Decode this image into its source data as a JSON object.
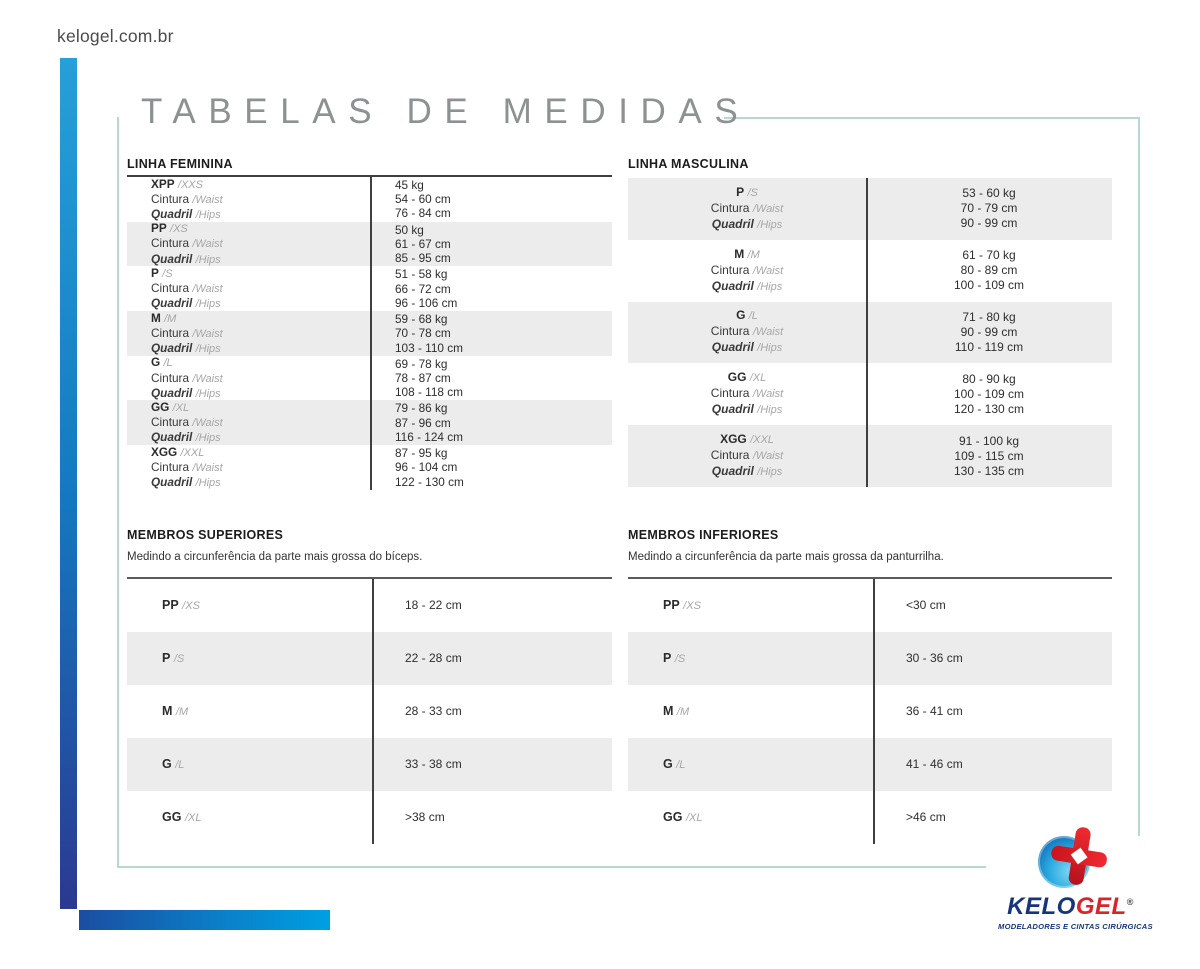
{
  "header": {
    "site": "kelogel.com.br",
    "title": "TABELAS DE MEDIDAS"
  },
  "shared_labels": {
    "cintura": "Cintura",
    "waist": "/Waist",
    "quadril": "Quadril",
    "hips": "/Hips"
  },
  "feminina": {
    "heading": "LINHA FEMININA",
    "rows": [
      {
        "size": "XPP",
        "intl": "/XXS",
        "weight": "45 kg",
        "waist": "54 - 60 cm",
        "hips": "76 - 84 cm"
      },
      {
        "size": "PP",
        "intl": "/XS",
        "weight": "50 kg",
        "waist": "61 - 67 cm",
        "hips": "85 - 95 cm"
      },
      {
        "size": "P",
        "intl": "/S",
        "weight": "51 - 58 kg",
        "waist": "66 - 72 cm",
        "hips": "96 - 106 cm"
      },
      {
        "size": "M",
        "intl": "/M",
        "weight": "59 - 68 kg",
        "waist": "70 - 78 cm",
        "hips": "103 - 110 cm"
      },
      {
        "size": "G",
        "intl": "/L",
        "weight": "69 - 78 kg",
        "waist": "78 - 87 cm",
        "hips": "108 - 118 cm"
      },
      {
        "size": "GG",
        "intl": "/XL",
        "weight": "79 - 86 kg",
        "waist": "87 - 96 cm",
        "hips": "116 - 124 cm"
      },
      {
        "size": "XGG",
        "intl": "/XXL",
        "weight": "87 - 95 kg",
        "waist": "96 - 104 cm",
        "hips": "122 - 130 cm"
      }
    ]
  },
  "masculina": {
    "heading": "LINHA MASCULINA",
    "rows": [
      {
        "size": "P",
        "intl": "/S",
        "weight": "53 - 60 kg",
        "waist": "70 - 79 cm",
        "hips": "90 - 99 cm"
      },
      {
        "size": "M",
        "intl": "/M",
        "weight": "61 - 70 kg",
        "waist": "80 - 89 cm",
        "hips": "100 - 109 cm"
      },
      {
        "size": "G",
        "intl": "/L",
        "weight": "71 - 80 kg",
        "waist": "90 - 99 cm",
        "hips": "110 - 119 cm"
      },
      {
        "size": "GG",
        "intl": "/XL",
        "weight": "80 - 90 kg",
        "waist": "100 - 109 cm",
        "hips": "120 - 130 cm"
      },
      {
        "size": "XGG",
        "intl": "/XXL",
        "weight": "91 - 100 kg",
        "waist": "109 - 115 cm",
        "hips": "130 - 135 cm"
      }
    ]
  },
  "superiores": {
    "heading": "MEMBROS SUPERIORES",
    "description": "Medindo a circunferência da parte mais grossa do bíceps.",
    "rows": [
      {
        "size": "PP",
        "intl": "/XS",
        "value": "18 - 22 cm"
      },
      {
        "size": "P",
        "intl": "/S",
        "value": "22 - 28 cm"
      },
      {
        "size": "M",
        "intl": "/M",
        "value": "28 - 33 cm"
      },
      {
        "size": "G",
        "intl": "/L",
        "value": "33 - 38 cm"
      },
      {
        "size": "GG",
        "intl": "/XL",
        "value": ">38 cm"
      }
    ]
  },
  "inferiores": {
    "heading": "MEMBROS INFERIORES",
    "description": "Medindo a circunferência da parte mais grossa da panturrilha.",
    "rows": [
      {
        "size": "PP",
        "intl": "/XS",
        "value": "<30 cm"
      },
      {
        "size": "P",
        "intl": "/S",
        "value": "30 - 36 cm"
      },
      {
        "size": "M",
        "intl": "/M",
        "value": "36 - 41 cm"
      },
      {
        "size": "G",
        "intl": "/L",
        "value": "41 - 46 cm"
      },
      {
        "size": "GG",
        "intl": "/XL",
        "value": ">46 cm"
      }
    ]
  },
  "logo": {
    "brand_primary": "KELO",
    "brand_secondary": "GEL",
    "registered": "®",
    "tagline": "MODELADORES E CINTAS CIRÚRGICAS"
  },
  "colors": {
    "accent_bar_top": "#25a0da",
    "accent_bar_bottom": "#2b3990",
    "frame_teal": "#b7d7d3",
    "row_stripe": "#ececec",
    "brand_navy": "#16357c",
    "brand_red": "#d6252b",
    "cross_red": "#d7161e",
    "circle_blue": "#2aa9e1"
  }
}
